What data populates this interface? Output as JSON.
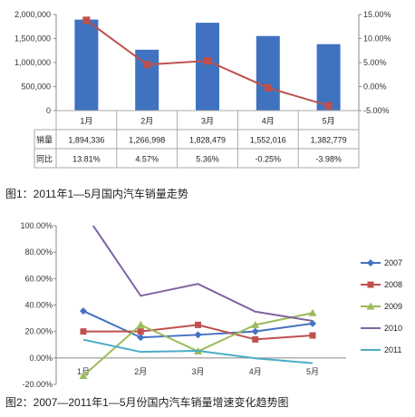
{
  "chart_data": [
    {
      "type": "bar",
      "categories": [
        "1月",
        "2月",
        "3月",
        "4月",
        "5月"
      ],
      "series": [
        {
          "name": "销量",
          "values": [
            1894336,
            1266998,
            1828479,
            1552016,
            1382779
          ],
          "color": "#3f72bf",
          "axis": "left"
        },
        {
          "name": "同比",
          "values": [
            13.81,
            4.57,
            5.36,
            -0.25,
            -3.98
          ],
          "color": "#c0504d",
          "axis": "right",
          "type": "line"
        }
      ],
      "ylim": [
        0,
        2000000
      ],
      "y_ticks": [
        "0",
        "500,000",
        "1,000,000",
        "1,500,000",
        "2,000,000"
      ],
      "y2lim": [
        -5,
        15
      ],
      "y2_ticks": [
        "-5.00%",
        "0.00%",
        "5.00%",
        "10.00%",
        "15.00%"
      ],
      "table": {
        "rows": [
          {
            "label": "销量",
            "cells": [
              "1,894,336",
              "1,266,998",
              "1,828,479",
              "1,552,016",
              "1,382,779"
            ]
          },
          {
            "label": "同比",
            "cells": [
              "13.81%",
              "4.57%",
              "5.36%",
              "-0.25%",
              "-3.98%"
            ]
          }
        ]
      },
      "caption": "图1：2011年1—5月国内汽车销量走势",
      "grid": false
    },
    {
      "type": "line",
      "categories": [
        "1月",
        "2月",
        "3月",
        "4月",
        "5月"
      ],
      "series": [
        {
          "name": "2007",
          "values": [
            35.5,
            15.5,
            17.5,
            20.0,
            26.0
          ],
          "color": "#4472c4",
          "marker": "diamond"
        },
        {
          "name": "2008",
          "values": [
            20.0,
            20.0,
            25.0,
            14.0,
            17.0
          ],
          "color": "#c0504d",
          "marker": "square"
        },
        {
          "name": "2009",
          "values": [
            -13.5,
            25.0,
            5.0,
            25.0,
            34.0
          ],
          "color": "#9bbb59",
          "marker": "triangle"
        },
        {
          "name": "2010",
          "values": [
            111.0,
            47.0,
            56.0,
            35.0,
            28.0
          ],
          "color": "#8064a2",
          "marker": "none"
        },
        {
          "name": "2011",
          "values": [
            13.81,
            4.57,
            5.36,
            -0.25,
            -3.98
          ],
          "color": "#4bacc6",
          "marker": "none"
        }
      ],
      "ylim": [
        -20,
        100
      ],
      "y_ticks": [
        "-20.00%",
        "0.00%",
        "20.00%",
        "40.00%",
        "60.00%",
        "80.00%",
        "100.00%"
      ],
      "legend_position": "right",
      "caption": "图2：2007—2011年1—5月份国内汽车销量增速变化趋势图",
      "grid": false
    }
  ]
}
